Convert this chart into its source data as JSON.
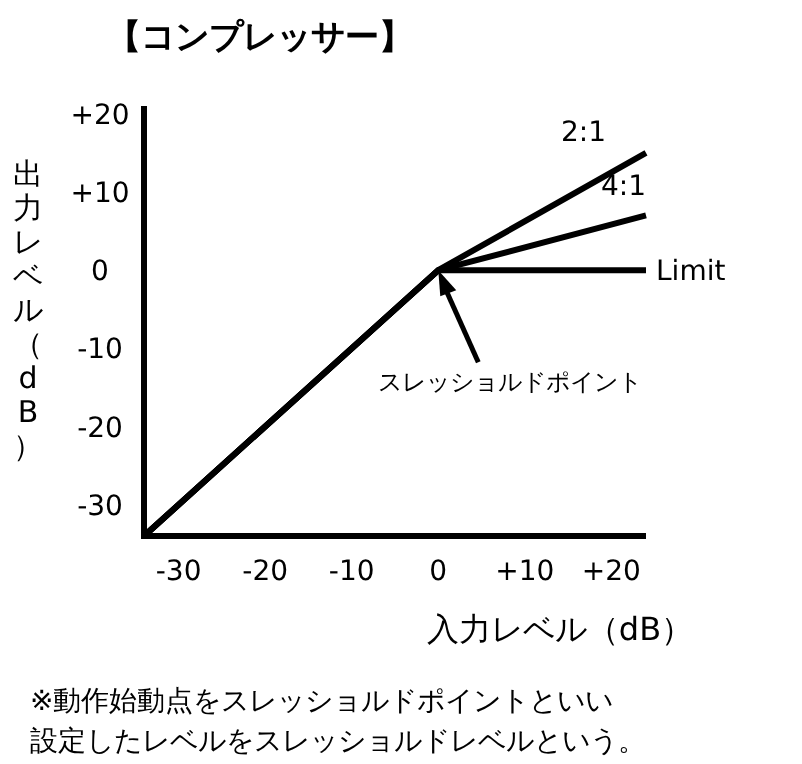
{
  "chart_data": {
    "type": "line",
    "title": "【コンプレッサー】",
    "xlabel": "入力レベル（dB）",
    "ylabel": "出力レベル（dB）",
    "xlim": [
      -34,
      24
    ],
    "ylim": [
      -34,
      21
    ],
    "xticks": [
      -30,
      -20,
      -10,
      0,
      {
        "value": 10,
        "label": "+10"
      },
      {
        "value": 20,
        "label": "+20"
      }
    ],
    "yticks": [
      -30,
      -20,
      -10,
      0,
      {
        "value": 10,
        "label": "+10"
      },
      {
        "value": 20,
        "label": "+20"
      }
    ],
    "series": [
      {
        "name": "2:1",
        "color": "#000000",
        "x": [
          -34,
          0,
          24
        ],
        "values": [
          -34,
          0,
          15
        ]
      },
      {
        "name": "4:1",
        "color": "#000000",
        "x": [
          -34,
          0,
          24
        ],
        "values": [
          -34,
          0,
          7
        ]
      },
      {
        "name": "Limit",
        "color": "#000000",
        "x": [
          -34,
          0,
          24
        ],
        "values": [
          -34,
          0,
          0
        ]
      }
    ],
    "annotations": [
      {
        "text": "スレッショルドポイント",
        "x": 0,
        "y": 0
      },
      "※動作始動点をスレッショルドポイントといい",
      "設定したレベルをスレッショルドレベルという。"
    ]
  }
}
